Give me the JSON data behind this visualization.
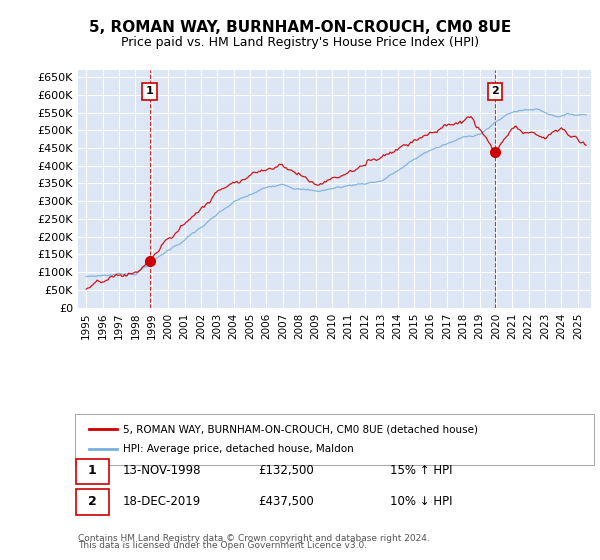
{
  "title": "5, ROMAN WAY, BURNHAM-ON-CROUCH, CM0 8UE",
  "subtitle": "Price paid vs. HM Land Registry's House Price Index (HPI)",
  "ylim": [
    0,
    670000
  ],
  "yticks": [
    0,
    50000,
    100000,
    150000,
    200000,
    250000,
    300000,
    350000,
    400000,
    450000,
    500000,
    550000,
    600000,
    650000
  ],
  "ytick_labels": [
    "£0",
    "£50K",
    "£100K",
    "£150K",
    "£200K",
    "£250K",
    "£300K",
    "£350K",
    "£400K",
    "£450K",
    "£500K",
    "£550K",
    "£600K",
    "£650K"
  ],
  "background_color": "#ffffff",
  "plot_bg_color": "#dce6f5",
  "grid_color": "#ffffff",
  "red_line_color": "#cc0000",
  "blue_line_color": "#7aafdd",
  "dashed_line_color": "#cc0000",
  "sale1_date": 1998.87,
  "sale1_price": 132500,
  "sale1_label": "1",
  "sale2_date": 2019.96,
  "sale2_price": 437500,
  "sale2_label": "2",
  "legend_entries": [
    "5, ROMAN WAY, BURNHAM-ON-CROUCH, CM0 8UE (detached house)",
    "HPI: Average price, detached house, Maldon"
  ],
  "annotation1_date": "13-NOV-1998",
  "annotation1_price": "£132,500",
  "annotation1_hpi": "15% ↑ HPI",
  "annotation2_date": "18-DEC-2019",
  "annotation2_price": "£437,500",
  "annotation2_hpi": "10% ↓ HPI",
  "footer": "Contains HM Land Registry data © Crown copyright and database right 2024.\nThis data is licensed under the Open Government Licence v3.0."
}
